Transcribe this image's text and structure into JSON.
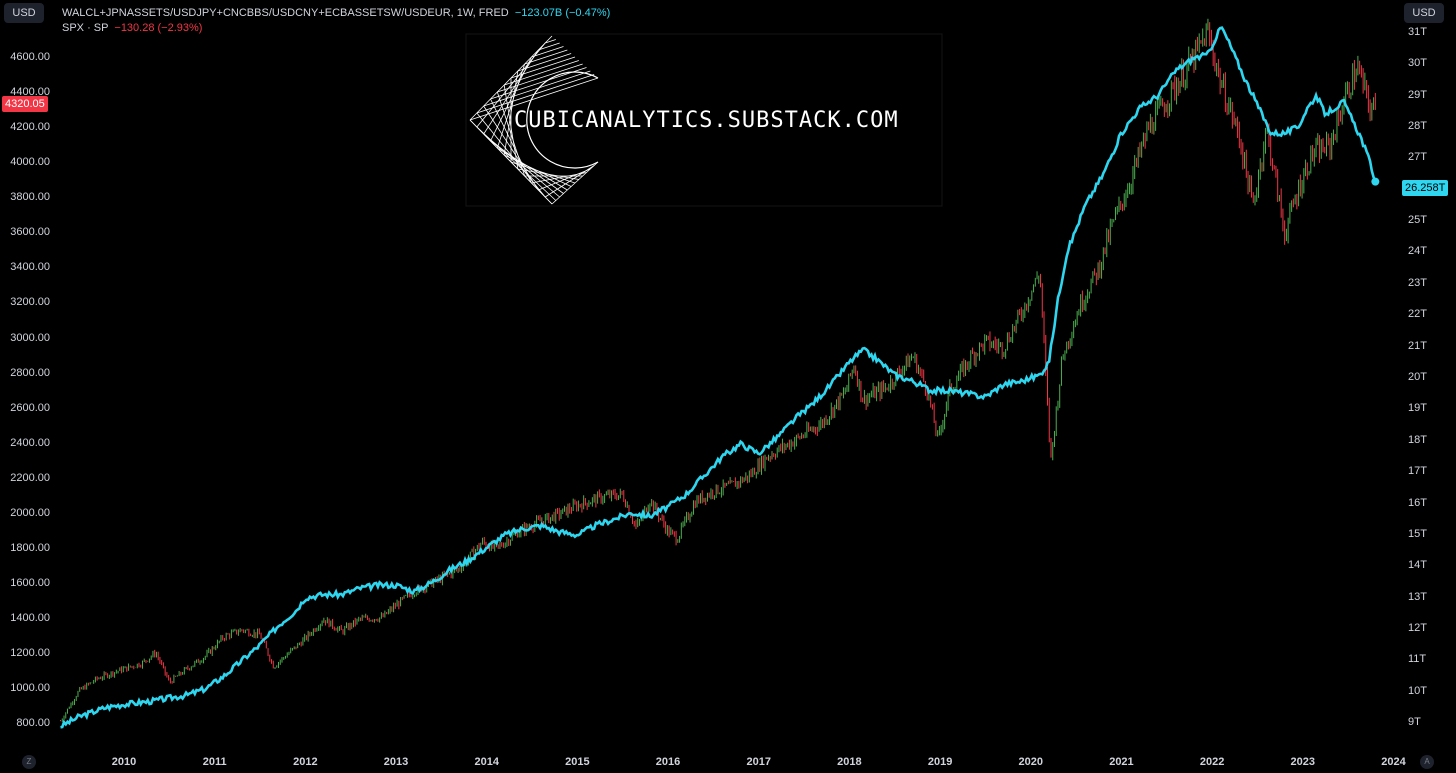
{
  "header": {
    "currency_left": "USD",
    "currency_right": "USD",
    "series1_title": "WALCL+JPNASSETS/USDJPY+CNCBBS/USDCNY+ECBASSETSW/USDEUR, 1W, FRED",
    "series1_change": "−123.07B (−0.47%)",
    "series2_title": "SPX · SP",
    "series2_change": "−130.28 (−2.93%)"
  },
  "watermark": {
    "text": "CUBICANALYTICS.SUBSTACK.COM"
  },
  "price_tags": {
    "spx_last": "4320.05",
    "liquidity_last": "26.258T"
  },
  "corner_buttons": {
    "z": "Z",
    "a": "A"
  },
  "colors": {
    "line": "#2fd6f0",
    "up": "#26a69a",
    "up_bar": "#4caf50",
    "down": "#f23645",
    "bg": "#000000"
  },
  "chart_data": {
    "type": "line",
    "title": "",
    "x_ticks": [
      "2010",
      "2011",
      "2012",
      "2013",
      "2014",
      "2015",
      "2016",
      "2017",
      "2018",
      "2019",
      "2020",
      "2021",
      "2022",
      "2023",
      "2024"
    ],
    "left_axis": {
      "ticks": [
        "800.00",
        "1000.00",
        "1200.00",
        "1400.00",
        "1600.00",
        "1800.00",
        "2000.00",
        "2200.00",
        "2400.00",
        "2600.00",
        "2800.00",
        "3000.00",
        "3200.00",
        "3400.00",
        "3600.00",
        "3800.00",
        "4000.00",
        "4200.00",
        "4400.00",
        "4600.00"
      ],
      "range": [
        700,
        4850
      ]
    },
    "right_axis": {
      "ticks": [
        "9T",
        "10T",
        "11T",
        "12T",
        "13T",
        "14T",
        "15T",
        "16T",
        "17T",
        "18T",
        "19T",
        "20T",
        "21T",
        "22T",
        "23T",
        "24T",
        "25T",
        "26T",
        "27T",
        "28T",
        "29T",
        "30T",
        "31T"
      ],
      "range": [
        8.4,
        31.6
      ]
    },
    "series": [
      {
        "name": "SPX · SP",
        "kind": "ohlc-bars",
        "axis": "left",
        "points": [
          [
            2009.3,
            820
          ],
          [
            2009.5,
            990
          ],
          [
            2009.7,
            1060
          ],
          [
            2009.9,
            1100
          ],
          [
            2010.2,
            1150
          ],
          [
            2010.35,
            1210
          ],
          [
            2010.5,
            1040
          ],
          [
            2010.7,
            1120
          ],
          [
            2010.9,
            1190
          ],
          [
            2011.1,
            1300
          ],
          [
            2011.3,
            1340
          ],
          [
            2011.5,
            1310
          ],
          [
            2011.65,
            1130
          ],
          [
            2011.8,
            1200
          ],
          [
            2012.0,
            1290
          ],
          [
            2012.2,
            1400
          ],
          [
            2012.4,
            1330
          ],
          [
            2012.6,
            1400
          ],
          [
            2012.85,
            1410
          ],
          [
            2013.0,
            1480
          ],
          [
            2013.2,
            1560
          ],
          [
            2013.45,
            1620
          ],
          [
            2013.7,
            1690
          ],
          [
            2013.95,
            1840
          ],
          [
            2014.1,
            1800
          ],
          [
            2014.35,
            1900
          ],
          [
            2014.6,
            1960
          ],
          [
            2014.8,
            2000
          ],
          [
            2015.0,
            2050
          ],
          [
            2015.3,
            2100
          ],
          [
            2015.5,
            2110
          ],
          [
            2015.65,
            1920
          ],
          [
            2015.8,
            2080
          ],
          [
            2016.0,
            1900
          ],
          [
            2016.1,
            1860
          ],
          [
            2016.3,
            2070
          ],
          [
            2016.5,
            2130
          ],
          [
            2016.7,
            2160
          ],
          [
            2016.9,
            2220
          ],
          [
            2017.1,
            2330
          ],
          [
            2017.4,
            2420
          ],
          [
            2017.7,
            2520
          ],
          [
            2017.95,
            2690
          ],
          [
            2018.05,
            2850
          ],
          [
            2018.15,
            2650
          ],
          [
            2018.4,
            2720
          ],
          [
            2018.7,
            2900
          ],
          [
            2018.85,
            2720
          ],
          [
            2018.98,
            2420
          ],
          [
            2019.1,
            2700
          ],
          [
            2019.35,
            2900
          ],
          [
            2019.5,
            2980
          ],
          [
            2019.7,
            2950
          ],
          [
            2019.9,
            3150
          ],
          [
            2020.1,
            3380
          ],
          [
            2020.22,
            2300
          ],
          [
            2020.35,
            2900
          ],
          [
            2020.55,
            3200
          ],
          [
            2020.75,
            3400
          ],
          [
            2020.9,
            3650
          ],
          [
            2021.1,
            3900
          ],
          [
            2021.3,
            4200
          ],
          [
            2021.55,
            4400
          ],
          [
            2021.8,
            4600
          ],
          [
            2021.95,
            4750
          ],
          [
            2022.1,
            4450
          ],
          [
            2022.3,
            4150
          ],
          [
            2022.45,
            3750
          ],
          [
            2022.6,
            4200
          ],
          [
            2022.8,
            3600
          ],
          [
            2022.95,
            3850
          ],
          [
            2023.1,
            4050
          ],
          [
            2023.3,
            4100
          ],
          [
            2023.45,
            4350
          ],
          [
            2023.6,
            4550
          ],
          [
            2023.75,
            4300
          ],
          [
            2023.8,
            4320
          ]
        ]
      },
      {
        "name": "WALCL+JPNASSETS/USDJPY+CNCBBS/USDCNY+ECBASSETSW/USDEUR",
        "kind": "line",
        "axis": "right",
        "points": [
          [
            2009.3,
            8.9
          ],
          [
            2009.5,
            9.2
          ],
          [
            2009.8,
            9.5
          ],
          [
            2010.0,
            9.6
          ],
          [
            2010.3,
            9.7
          ],
          [
            2010.5,
            9.8
          ],
          [
            2010.7,
            9.9
          ],
          [
            2010.9,
            10.1
          ],
          [
            2011.1,
            10.5
          ],
          [
            2011.3,
            11.0
          ],
          [
            2011.5,
            11.5
          ],
          [
            2011.7,
            12.1
          ],
          [
            2011.9,
            12.6
          ],
          [
            2012.0,
            13.0
          ],
          [
            2012.2,
            13.1
          ],
          [
            2012.4,
            13.1
          ],
          [
            2012.6,
            13.3
          ],
          [
            2012.8,
            13.4
          ],
          [
            2013.0,
            13.4
          ],
          [
            2013.2,
            13.2
          ],
          [
            2013.4,
            13.5
          ],
          [
            2013.6,
            13.9
          ],
          [
            2013.8,
            14.2
          ],
          [
            2014.0,
            14.6
          ],
          [
            2014.2,
            15.0
          ],
          [
            2014.4,
            15.2
          ],
          [
            2014.6,
            15.3
          ],
          [
            2014.8,
            15.1
          ],
          [
            2015.0,
            15.0
          ],
          [
            2015.2,
            15.3
          ],
          [
            2015.4,
            15.5
          ],
          [
            2015.6,
            15.7
          ],
          [
            2015.8,
            15.6
          ],
          [
            2016.0,
            15.9
          ],
          [
            2016.2,
            16.3
          ],
          [
            2016.4,
            16.9
          ],
          [
            2016.6,
            17.5
          ],
          [
            2016.8,
            17.9
          ],
          [
            2017.0,
            17.6
          ],
          [
            2017.2,
            18.1
          ],
          [
            2017.4,
            18.7
          ],
          [
            2017.6,
            19.2
          ],
          [
            2017.8,
            19.8
          ],
          [
            2018.0,
            20.5
          ],
          [
            2018.15,
            20.9
          ],
          [
            2018.3,
            20.6
          ],
          [
            2018.5,
            20.1
          ],
          [
            2018.7,
            19.9
          ],
          [
            2018.9,
            19.6
          ],
          [
            2019.1,
            19.6
          ],
          [
            2019.3,
            19.5
          ],
          [
            2019.5,
            19.4
          ],
          [
            2019.7,
            19.8
          ],
          [
            2019.9,
            19.9
          ],
          [
            2020.1,
            20.1
          ],
          [
            2020.2,
            20.5
          ],
          [
            2020.3,
            22.5
          ],
          [
            2020.4,
            24.0
          ],
          [
            2020.6,
            25.5
          ],
          [
            2020.8,
            26.5
          ],
          [
            2021.0,
            27.8
          ],
          [
            2021.2,
            28.6
          ],
          [
            2021.4,
            29.0
          ],
          [
            2021.6,
            29.8
          ],
          [
            2021.8,
            30.2
          ],
          [
            2021.95,
            30.3
          ],
          [
            2022.0,
            30.6
          ],
          [
            2022.1,
            31.2
          ],
          [
            2022.2,
            30.6
          ],
          [
            2022.35,
            29.6
          ],
          [
            2022.5,
            28.7
          ],
          [
            2022.65,
            27.8
          ],
          [
            2022.8,
            27.8
          ],
          [
            2022.95,
            28.0
          ],
          [
            2023.05,
            28.6
          ],
          [
            2023.15,
            29.0
          ],
          [
            2023.25,
            28.4
          ],
          [
            2023.35,
            28.6
          ],
          [
            2023.45,
            28.8
          ],
          [
            2023.55,
            28.2
          ],
          [
            2023.65,
            27.6
          ],
          [
            2023.75,
            26.8
          ],
          [
            2023.8,
            26.258
          ]
        ]
      }
    ],
    "x_range": [
      2009.25,
      2024.05
    ],
    "grid": false,
    "legend_position": "top-left"
  }
}
